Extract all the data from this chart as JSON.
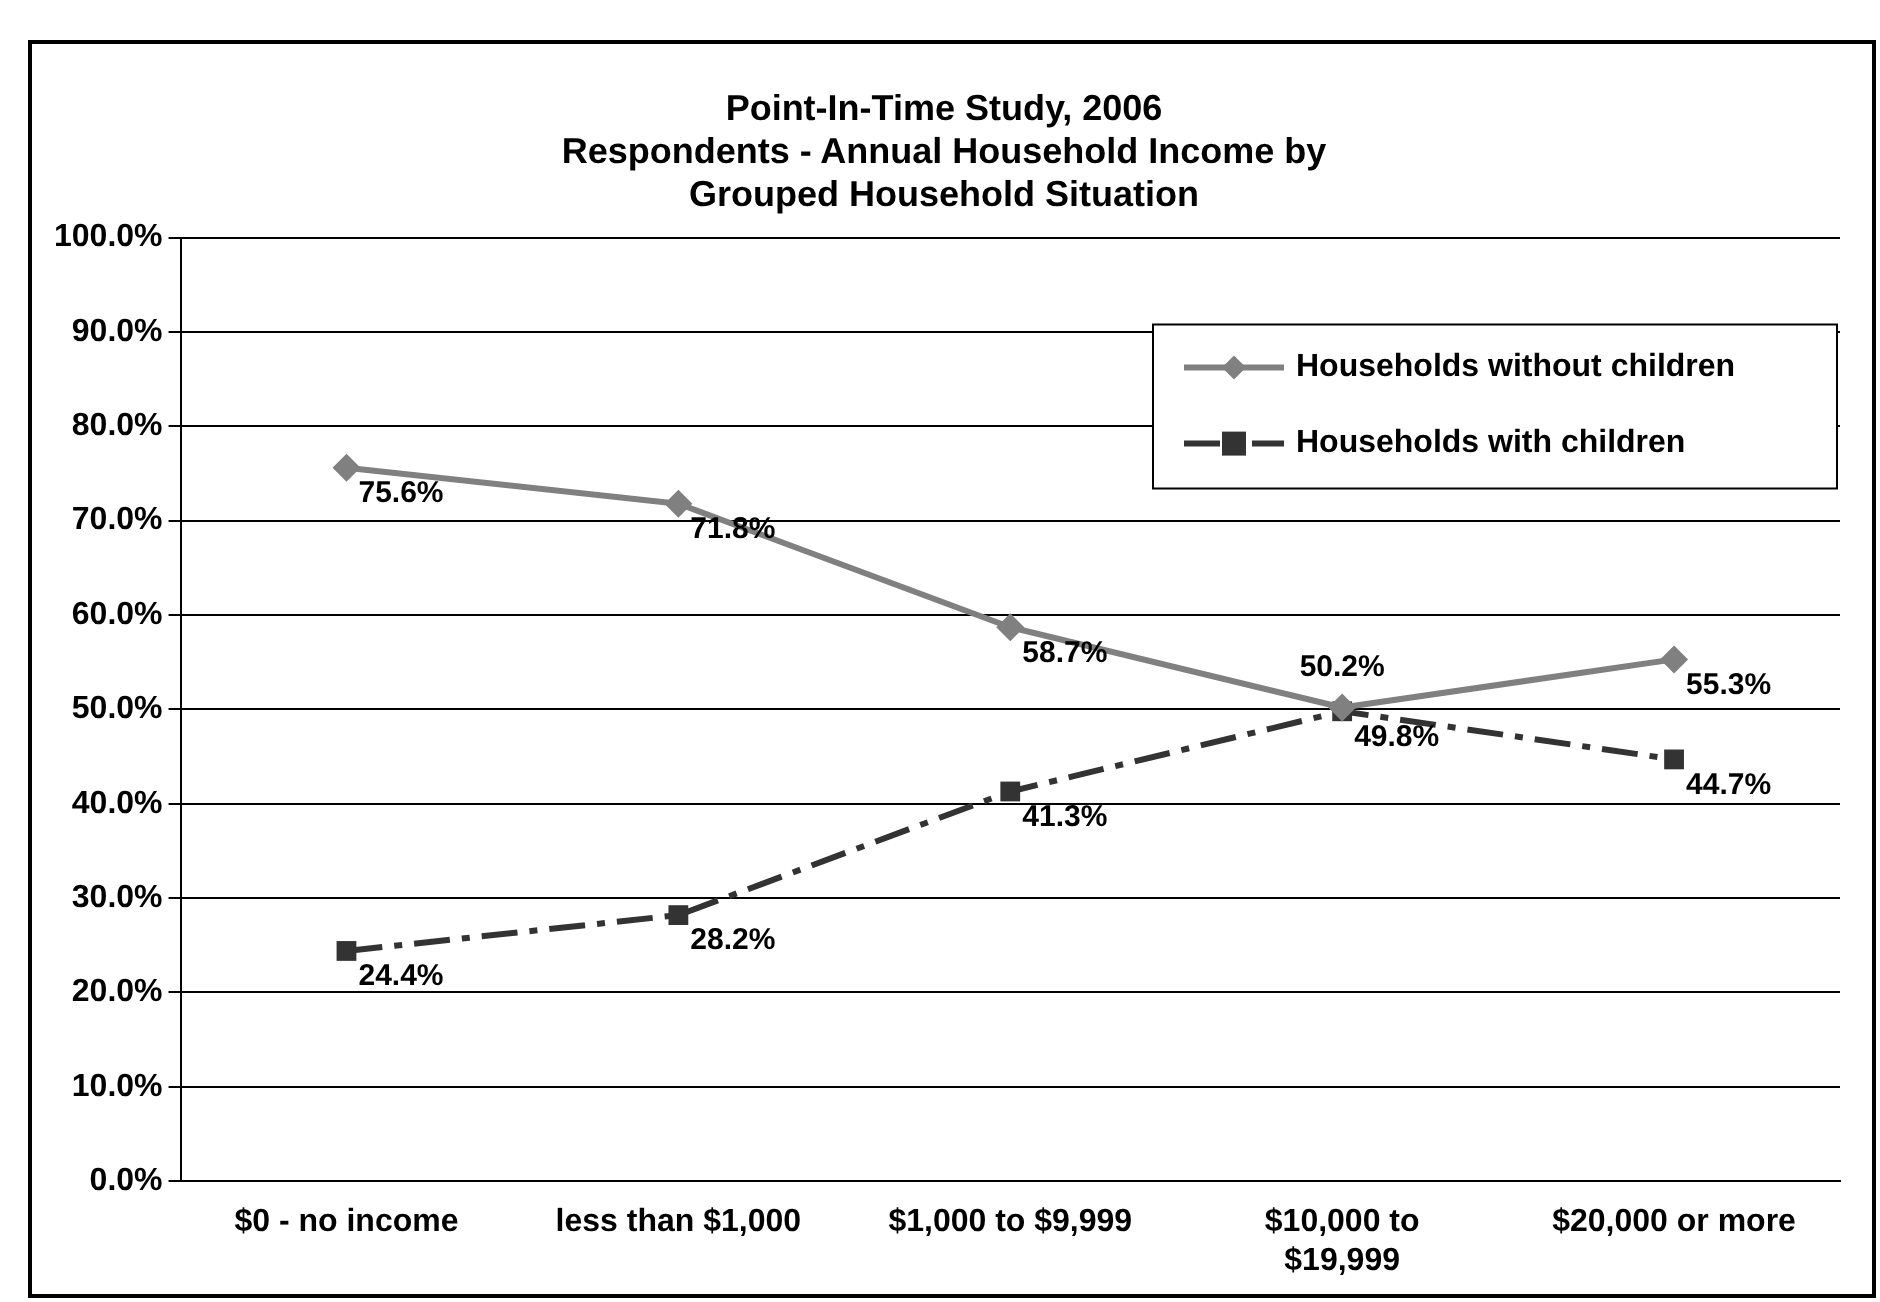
{
  "chart_data": {
    "type": "line",
    "title": "Point-In-Time Study, 2006\nRespondents - Annual Household Income by\nGrouped Household Situation",
    "categories": [
      "$0 - no income",
      "less than $1,000",
      "$1,000 to $9,999",
      "$10,000 to\n$19,999",
      "$20,000 or more"
    ],
    "series": [
      {
        "name": "Households without children",
        "color": "#808080",
        "values": [
          75.6,
          71.8,
          58.7,
          50.2,
          55.3
        ],
        "value_labels": [
          "75.6%",
          "71.8%",
          "58.7%",
          "50.2%",
          "55.3%"
        ],
        "marker": "diamond",
        "line_style": "solid"
      },
      {
        "name": "Households with children",
        "color": "#333333",
        "values": [
          24.4,
          28.2,
          41.3,
          49.8,
          44.7
        ],
        "value_labels": [
          "24.4%",
          "28.2%",
          "41.3%",
          "49.8%",
          "44.7%"
        ],
        "marker": "square",
        "line_style": "dashed"
      }
    ],
    "ylim": [
      0,
      100
    ],
    "yticks": [
      {
        "value": 0,
        "label": "0.0%"
      },
      {
        "value": 10,
        "label": "10.0%"
      },
      {
        "value": 20,
        "label": "20.0%"
      },
      {
        "value": 30,
        "label": "30.0%"
      },
      {
        "value": 40,
        "label": "40.0%"
      },
      {
        "value": 50,
        "label": "50.0%"
      },
      {
        "value": 60,
        "label": "60.0%"
      },
      {
        "value": 70,
        "label": "70.0%"
      },
      {
        "value": 80,
        "label": "80.0%"
      },
      {
        "value": 90,
        "label": "90.0%"
      },
      {
        "value": 100,
        "label": "100.0%"
      }
    ],
    "grid": "y",
    "legend": "top right"
  }
}
